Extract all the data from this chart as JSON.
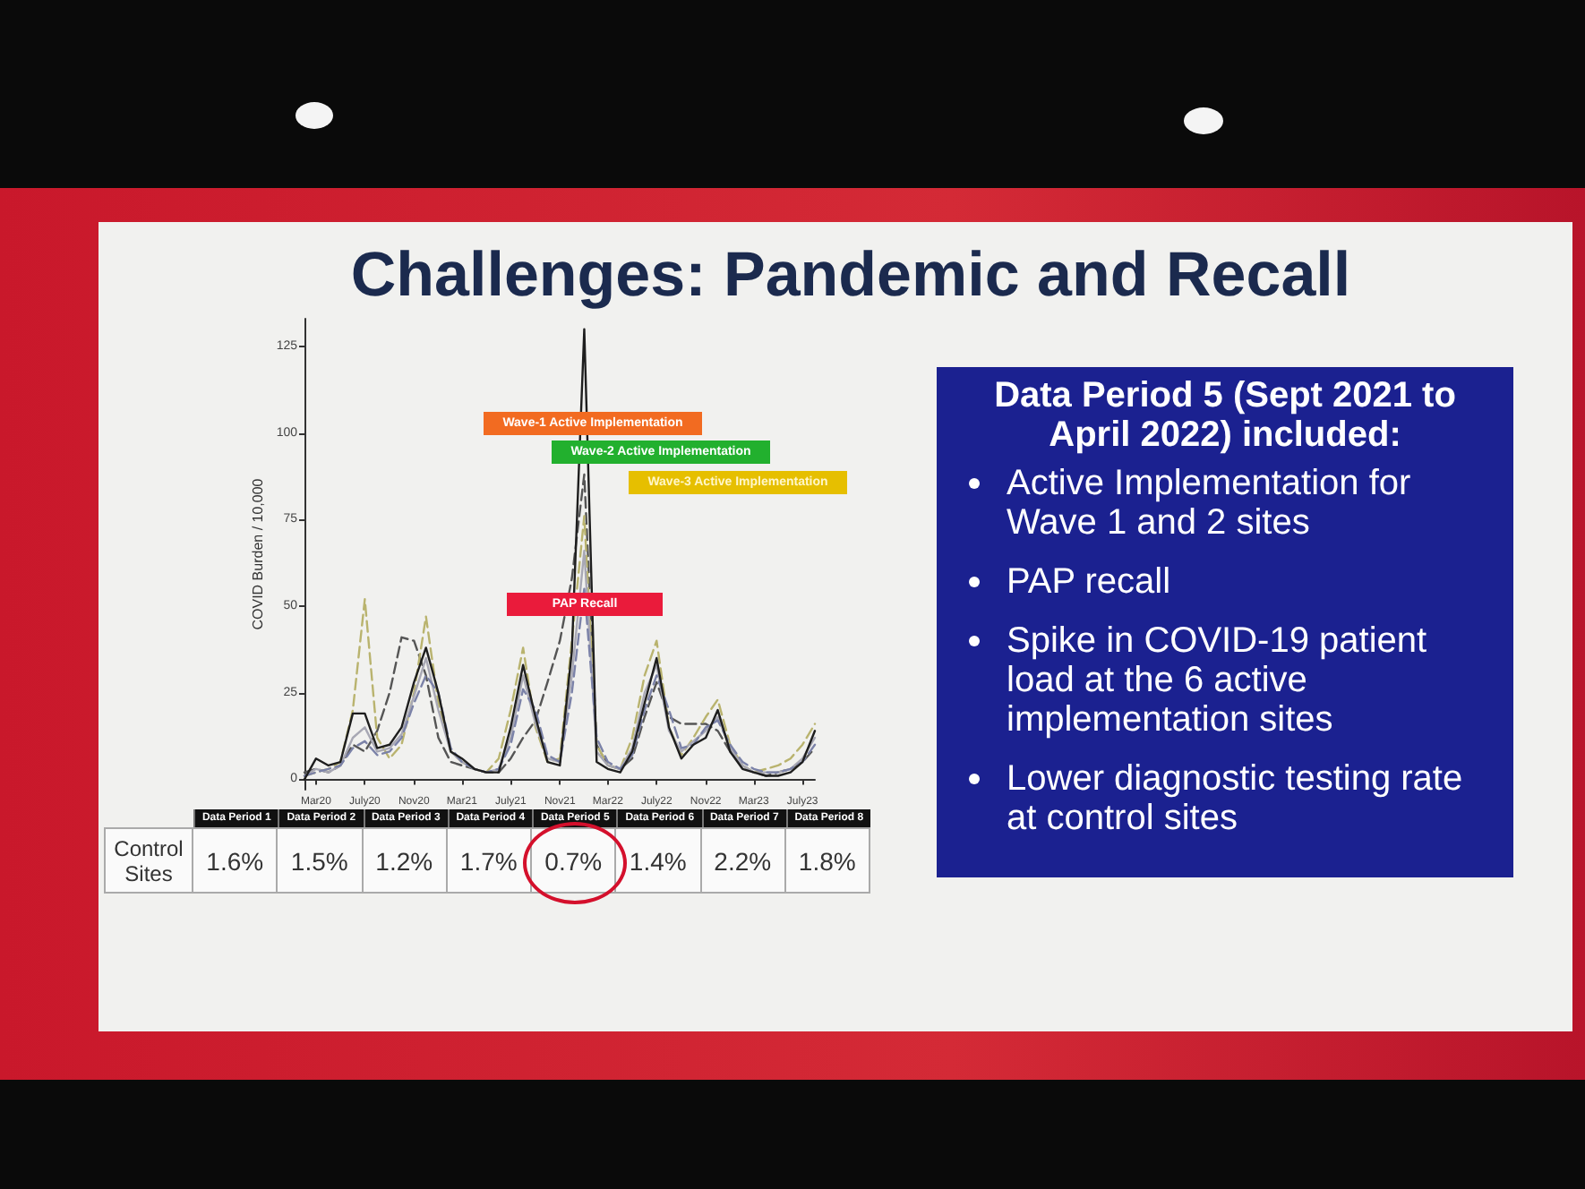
{
  "chart_data": [
    {
      "type": "line",
      "title": "Challenges: Pandemic and Recall",
      "ylabel": "COVID Burden / 10,000",
      "x": [
        "2020-02",
        "2020-03",
        "2020-04",
        "2020-05",
        "2020-06",
        "2020-07",
        "2020-08",
        "2020-09",
        "2020-10",
        "2020-11",
        "2020-12",
        "2021-01",
        "2021-02",
        "2021-03",
        "2021-04",
        "2021-05",
        "2021-06",
        "2021-07",
        "2021-08",
        "2021-09",
        "2021-10",
        "2021-11",
        "2021-12",
        "2022-01",
        "2022-02",
        "2022-03",
        "2022-04",
        "2022-05",
        "2022-06",
        "2022-07",
        "2022-08",
        "2022-09",
        "2022-10",
        "2022-11",
        "2022-12",
        "2023-01",
        "2023-02",
        "2023-03",
        "2023-04",
        "2023-05",
        "2023-06",
        "2023-07",
        "2023-08"
      ],
      "series": [
        {
          "color": "#555555",
          "line_style": "dashed",
          "values": [
            2,
            3,
            2,
            4,
            10,
            8,
            14,
            25,
            41,
            40,
            30,
            12,
            5,
            4,
            3,
            2,
            2,
            6,
            12,
            17,
            28,
            40,
            58,
            88,
            10,
            4,
            3,
            6,
            18,
            28,
            18,
            16,
            16,
            16,
            14,
            8,
            4,
            2,
            1,
            2,
            3,
            5,
            9
          ]
        },
        {
          "color": "#b9b36e",
          "line_style": "dashed",
          "values": [
            1,
            2,
            3,
            5,
            20,
            52,
            12,
            6,
            10,
            25,
            47,
            22,
            8,
            5,
            3,
            2,
            6,
            20,
            38,
            15,
            5,
            6,
            40,
            76,
            10,
            4,
            3,
            12,
            30,
            40,
            15,
            7,
            12,
            18,
            23,
            10,
            4,
            2,
            3,
            4,
            6,
            10,
            16
          ]
        },
        {
          "color": "#a8a8b4",
          "line_style": "solid",
          "values": [
            1,
            3,
            2,
            4,
            12,
            15,
            8,
            9,
            13,
            24,
            35,
            20,
            8,
            5,
            3,
            2,
            3,
            12,
            30,
            16,
            6,
            5,
            30,
            66,
            8,
            4,
            3,
            9,
            25,
            33,
            14,
            8,
            11,
            14,
            18,
            9,
            4,
            2,
            2,
            2,
            3,
            6,
            12
          ]
        },
        {
          "color": "#7b82a8",
          "line_style": "dashed",
          "values": [
            1,
            2,
            3,
            4,
            9,
            11,
            7,
            8,
            12,
            22,
            30,
            25,
            9,
            5,
            3,
            2,
            3,
            10,
            26,
            20,
            7,
            5,
            25,
            55,
            12,
            5,
            3,
            7,
            20,
            30,
            20,
            9,
            10,
            15,
            17,
            10,
            5,
            3,
            2,
            2,
            3,
            5,
            10
          ]
        },
        {
          "color": "#1e1e1e",
          "line_style": "solid",
          "values": [
            0,
            6,
            4,
            5,
            19,
            19,
            9,
            10,
            15,
            28,
            38,
            25,
            8,
            6,
            3,
            2,
            2,
            15,
            33,
            18,
            5,
            4,
            37,
            130,
            5,
            3,
            2,
            8,
            22,
            35,
            15,
            6,
            10,
            12,
            20,
            8,
            3,
            2,
            1,
            1,
            2,
            5,
            14
          ]
        }
      ],
      "marker": "none",
      "xlim": [
        "2020-02",
        "2023-08"
      ],
      "xticks": [
        {
          "value": "2020-03",
          "label": "Mar20"
        },
        {
          "value": "2020-07",
          "label": "July20"
        },
        {
          "value": "2020-11",
          "label": "Nov20"
        },
        {
          "value": "2021-03",
          "label": "Mar21"
        },
        {
          "value": "2021-07",
          "label": "July21"
        },
        {
          "value": "2021-11",
          "label": "Nov21"
        },
        {
          "value": "2022-03",
          "label": "Mar22"
        },
        {
          "value": "2022-07",
          "label": "July22"
        },
        {
          "value": "2022-11",
          "label": "Nov22"
        },
        {
          "value": "2023-03",
          "label": "Mar23"
        },
        {
          "value": "2023-07",
          "label": "July23"
        }
      ],
      "ylim": [
        -3,
        133
      ],
      "yticks": [
        0,
        25,
        50,
        75,
        100,
        125
      ],
      "annotations": [
        "Wave-1 Active Implementation",
        "Wave-2 Active Implementation",
        "Wave-3 Active Implementation",
        "PAP Recall"
      ]
    },
    {
      "type": "other",
      "ylabel": "Control Sites",
      "categories": [
        "Data Period 1",
        "Data Period 2",
        "Data Period 3",
        "Data Period 4",
        "Data Period 5",
        "Data Period 6",
        "Data Period 7",
        "Data Period 8"
      ],
      "value_labels": [
        "1.6%",
        "1.5%",
        "1.2%",
        "1.7%",
        "0.7%",
        "1.4%",
        "2.2%",
        "1.8%"
      ]
    },
    {
      "type": "other",
      "title": "Data Period 5 (Sept 2021 to April 2022) included:",
      "annotations": [
        "Active Implementation for Wave 1 and 2 sites",
        "PAP recall",
        "Spike in COVID-19 patient load at the 6 active implementation sites",
        "Lower diagnostic testing rate at control sites"
      ]
    }
  ]
}
